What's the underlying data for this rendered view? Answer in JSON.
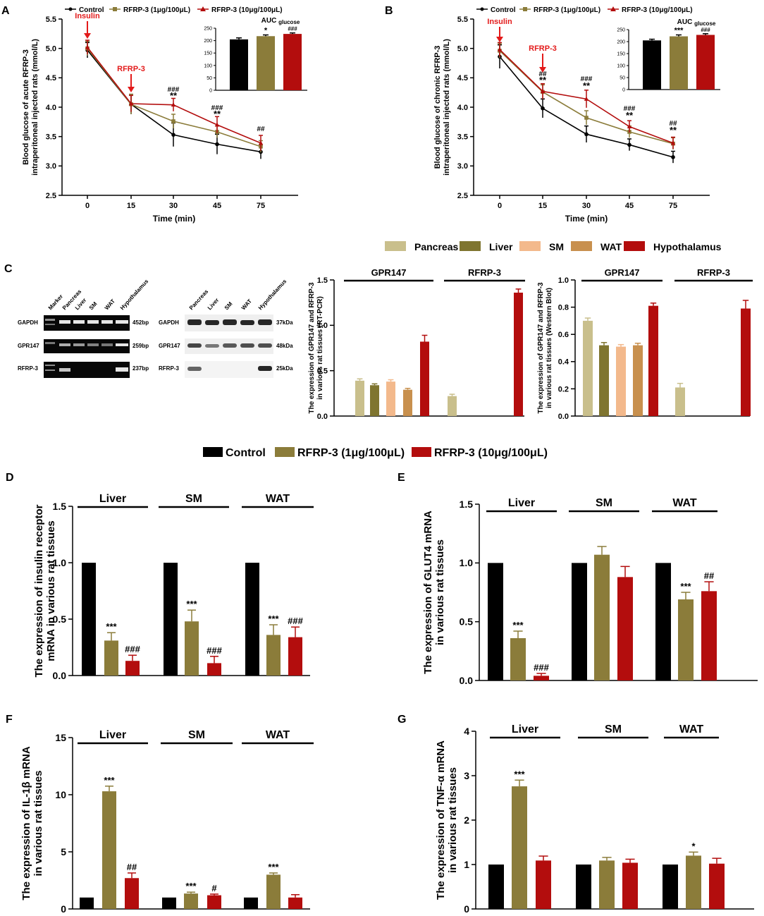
{
  "colors": {
    "control": "#000000",
    "low": "#8b7c3a",
    "high": "#b30d0d",
    "pancreas": "#c9bf8c",
    "liver": "#7f7530",
    "sm": "#f3b98c",
    "wat": "#c8904e",
    "hypothalamus": "#b30d0d",
    "annotation": "#e31a1a"
  },
  "legends": {
    "top": [
      "Control",
      "RFRP-3 (1μg/100μL)",
      "RFRP-3 (10μg/100μL)"
    ],
    "tissues": [
      "Pancreas",
      "Liver",
      "SM",
      "WAT",
      "Hypothalamus"
    ],
    "middle": [
      "Control",
      "RFRP-3 (1μg/100μL)",
      "RFRP-3 (10μg/100μL)"
    ]
  },
  "panel_letters": [
    "A",
    "B",
    "C",
    "D",
    "E",
    "F",
    "G"
  ],
  "arrows": {
    "insulin": "Insulin",
    "rfrp": "RFRP-3"
  },
  "gels": {
    "pcr_lanes": [
      "Marker",
      "Pancreas",
      "Liver",
      "SM",
      "WAT",
      "Hypothalamus"
    ],
    "pcr_rows": [
      "GAPDH",
      "GPR147",
      "RFRP-3"
    ],
    "pcr_sizes": [
      "452bp",
      "259bp",
      "237bp"
    ],
    "wb_lanes": [
      "Pancreas",
      "Liver",
      "SM",
      "WAT",
      "Hypothalamus"
    ],
    "wb_rows": [
      "GAPDH",
      "GPR147",
      "RFRP-3"
    ],
    "wb_sizes": [
      "37kDa",
      "48kDa",
      "25kDa"
    ]
  },
  "chart_data": [
    {
      "id": "A",
      "type": "line",
      "ylabel": [
        "Blood glucose of acute RFRP-3",
        "intraperitoneal injected rats (mmol/L)"
      ],
      "xlabel": "Time (min)",
      "categories": [
        "0",
        "15",
        "30",
        "45",
        "75"
      ],
      "ylim": [
        2.5,
        5.5
      ],
      "yticks": [
        "2.5",
        "3.0",
        "3.5",
        "4.0",
        "4.5",
        "5.0",
        "5.5"
      ],
      "series": [
        {
          "name": "Control",
          "values": [
            4.97,
            4.05,
            3.53,
            3.37,
            3.24
          ],
          "errors": [
            0.13,
            0.17,
            0.2,
            0.17,
            0.12
          ]
        },
        {
          "name": "RFRP-3 (1μg/100μL)",
          "values": [
            5.0,
            4.05,
            3.76,
            3.58,
            3.33
          ],
          "errors": [
            0.12,
            0.17,
            0.12,
            0.1,
            0.1
          ]
        },
        {
          "name": "RFRP-3 (10μg/100μL)",
          "values": [
            5.02,
            4.06,
            4.04,
            3.7,
            3.39
          ],
          "errors": [
            0.12,
            0.14,
            0.11,
            0.14,
            0.13
          ]
        }
      ],
      "annotations": [
        "###",
        "**",
        "###",
        "**",
        "##"
      ],
      "inset": {
        "title": "AUC",
        "sub": "glucose",
        "ylim": [
          0,
          250
        ],
        "yticks": [
          "0",
          "50",
          "100",
          "150",
          "200",
          "250"
        ],
        "values": [
          205,
          218,
          227
        ],
        "errors": [
          6,
          5,
          4
        ],
        "marks": [
          "",
          "*",
          "###"
        ]
      }
    },
    {
      "id": "B",
      "type": "line",
      "ylabel": [
        "Blood glucose of chronic RFRP-3",
        "intraperitoneal injected rats (mmol/L)"
      ],
      "xlabel": "Time (min)",
      "categories": [
        "0",
        "15",
        "30",
        "45",
        "75"
      ],
      "ylim": [
        2.5,
        5.5
      ],
      "yticks": [
        "2.5",
        "3.0",
        "3.5",
        "4.0",
        "4.5",
        "5.0",
        "5.5"
      ],
      "series": [
        {
          "name": "Control",
          "values": [
            4.86,
            3.98,
            3.54,
            3.36,
            3.15
          ],
          "errors": [
            0.2,
            0.16,
            0.14,
            0.1,
            0.1
          ]
        },
        {
          "name": "RFRP-3 (1μg/100μL)",
          "values": [
            4.96,
            4.26,
            3.82,
            3.58,
            3.38
          ],
          "errors": [
            0.12,
            0.12,
            0.12,
            0.1,
            0.1
          ]
        },
        {
          "name": "RFRP-3 (10μg/100μL)",
          "values": [
            4.98,
            4.27,
            4.14,
            3.67,
            3.39
          ],
          "errors": [
            0.12,
            0.13,
            0.15,
            0.1,
            0.1
          ]
        }
      ],
      "annotations": [
        "##",
        "**",
        "###",
        "**",
        "###",
        "**",
        "##",
        "**"
      ],
      "inset": {
        "title": "AUC",
        "sub": "glucose",
        "ylim": [
          0,
          250
        ],
        "yticks": [
          "0",
          "50",
          "100",
          "150",
          "200",
          "250"
        ],
        "values": [
          205,
          222,
          228
        ],
        "errors": [
          5,
          6,
          5
        ],
        "marks": [
          "",
          "***",
          "###"
        ]
      }
    },
    {
      "id": "C1",
      "type": "bar",
      "ylabel": [
        "The expression of GPR147 and RFRP-3",
        "in various rat tissues (RT-PCR)"
      ],
      "groups": [
        "GPR147",
        "RFRP-3"
      ],
      "ylim": [
        0,
        1.5
      ],
      "yticks": [
        "0.0",
        "0.5",
        "1.0",
        "1.5"
      ],
      "series": [
        {
          "name": "Pancreas",
          "values": [
            0.39,
            0.22
          ],
          "errors": [
            0.02,
            0.02
          ]
        },
        {
          "name": "Liver",
          "values": [
            0.34,
            null
          ],
          "errors": [
            0.015,
            0
          ]
        },
        {
          "name": "SM",
          "values": [
            0.38,
            null
          ],
          "errors": [
            0.02,
            0
          ]
        },
        {
          "name": "WAT",
          "values": [
            0.29,
            null
          ],
          "errors": [
            0.015,
            0
          ]
        },
        {
          "name": "Hypothalamus",
          "values": [
            0.82,
            1.36
          ],
          "errors": [
            0.07,
            0.04
          ]
        }
      ]
    },
    {
      "id": "C2",
      "type": "bar",
      "ylabel": [
        "The expression of GPR147 and RFRP-3",
        "in various rat tissues (Western Blot)"
      ],
      "groups": [
        "GPR147",
        "RFRP-3"
      ],
      "ylim": [
        0,
        1.0
      ],
      "yticks": [
        "0.0",
        "0.2",
        "0.4",
        "0.6",
        "0.8",
        "1.0"
      ],
      "series": [
        {
          "name": "Pancreas",
          "values": [
            0.7,
            0.21
          ],
          "errors": [
            0.02,
            0.03
          ]
        },
        {
          "name": "Liver",
          "values": [
            0.52,
            null
          ],
          "errors": [
            0.02,
            0
          ]
        },
        {
          "name": "SM",
          "values": [
            0.51,
            null
          ],
          "errors": [
            0.015,
            0
          ]
        },
        {
          "name": "WAT",
          "values": [
            0.52,
            null
          ],
          "errors": [
            0.015,
            0
          ]
        },
        {
          "name": "Hypothalamus",
          "values": [
            0.81,
            0.79
          ],
          "errors": [
            0.02,
            0.06
          ]
        }
      ]
    },
    {
      "id": "D",
      "type": "bar",
      "ylabel": [
        "The expression of insulin receptor",
        "mRNA in various rat tissues"
      ],
      "groups": [
        "Liver",
        "SM",
        "WAT"
      ],
      "ylim": [
        0,
        1.5
      ],
      "yticks": [
        "0.0",
        "0.5",
        "1.0",
        "1.5"
      ],
      "series": [
        {
          "name": "Control",
          "values": [
            1.0,
            1.0,
            1.0
          ],
          "errors": [
            0,
            0,
            0
          ]
        },
        {
          "name": "RFRP-3 (1μg/100μL)",
          "values": [
            0.31,
            0.48,
            0.36
          ],
          "errors": [
            0.07,
            0.1,
            0.09
          ]
        },
        {
          "name": "RFRP-3 (10μg/100μL)",
          "values": [
            0.13,
            0.11,
            0.34
          ],
          "errors": [
            0.05,
            0.06,
            0.09
          ]
        }
      ],
      "marks": [
        [
          "",
          "***",
          "###"
        ],
        [
          "",
          "***",
          "###"
        ],
        [
          "",
          "***",
          "###"
        ]
      ]
    },
    {
      "id": "E",
      "type": "bar",
      "ylabel": [
        "The expression of GLUT4 mRNA",
        "in various rat tissues"
      ],
      "groups": [
        "Liver",
        "SM",
        "WAT"
      ],
      "ylim": [
        0,
        1.5
      ],
      "yticks": [
        "0.0",
        "0.5",
        "1.0",
        "1.5"
      ],
      "series": [
        {
          "name": "Control",
          "values": [
            1.0,
            1.0,
            1.0
          ],
          "errors": [
            0,
            0,
            0
          ]
        },
        {
          "name": "RFRP-3 (1μg/100μL)",
          "values": [
            0.36,
            1.07,
            0.69
          ],
          "errors": [
            0.06,
            0.07,
            0.06
          ]
        },
        {
          "name": "RFRP-3 (10μg/100μL)",
          "values": [
            0.04,
            0.88,
            0.76
          ],
          "errors": [
            0.02,
            0.09,
            0.08
          ]
        }
      ],
      "marks": [
        [
          "",
          "***",
          "###"
        ],
        [
          "",
          "",
          ""
        ],
        [
          "",
          "***",
          "##"
        ]
      ]
    },
    {
      "id": "F",
      "type": "bar",
      "ylabel": [
        "The expression of IL-1β mRNA",
        "in various rat tissues"
      ],
      "groups": [
        "Liver",
        "SM",
        "WAT"
      ],
      "ylim": [
        0,
        15
      ],
      "yticks": [
        "0",
        "5",
        "10",
        "15"
      ],
      "series": [
        {
          "name": "Control",
          "values": [
            1.0,
            1.0,
            1.0
          ],
          "errors": [
            0,
            0,
            0
          ]
        },
        {
          "name": "RFRP-3 (1μg/100μL)",
          "values": [
            10.3,
            1.35,
            3.0
          ],
          "errors": [
            0.45,
            0.12,
            0.15
          ]
        },
        {
          "name": "RFRP-3 (10μg/100μL)",
          "values": [
            2.7,
            1.2,
            1.0
          ],
          "errors": [
            0.45,
            0.1,
            0.25
          ]
        }
      ],
      "marks": [
        [
          "",
          "***",
          "##"
        ],
        [
          "",
          "***",
          "#"
        ],
        [
          "",
          "***",
          ""
        ]
      ]
    },
    {
      "id": "G",
      "type": "bar",
      "ylabel": [
        "The expression of TNF-α mRNA",
        "in various rat tissues"
      ],
      "groups": [
        "Liver",
        "SM",
        "WAT"
      ],
      "ylim": [
        0,
        4
      ],
      "yticks": [
        "0",
        "1",
        "2",
        "3",
        "4"
      ],
      "series": [
        {
          "name": "Control",
          "values": [
            1.0,
            1.0,
            1.0
          ],
          "errors": [
            0,
            0,
            0
          ]
        },
        {
          "name": "RFRP-3 (1μg/100μL)",
          "values": [
            2.76,
            1.09,
            1.2
          ],
          "errors": [
            0.14,
            0.07,
            0.08
          ]
        },
        {
          "name": "RFRP-3 (10μg/100μL)",
          "values": [
            1.09,
            1.04,
            1.02
          ],
          "errors": [
            0.1,
            0.08,
            0.12
          ]
        }
      ],
      "marks": [
        [
          "",
          "***",
          ""
        ],
        [
          "",
          "",
          ""
        ],
        [
          "",
          "*",
          ""
        ]
      ]
    }
  ]
}
